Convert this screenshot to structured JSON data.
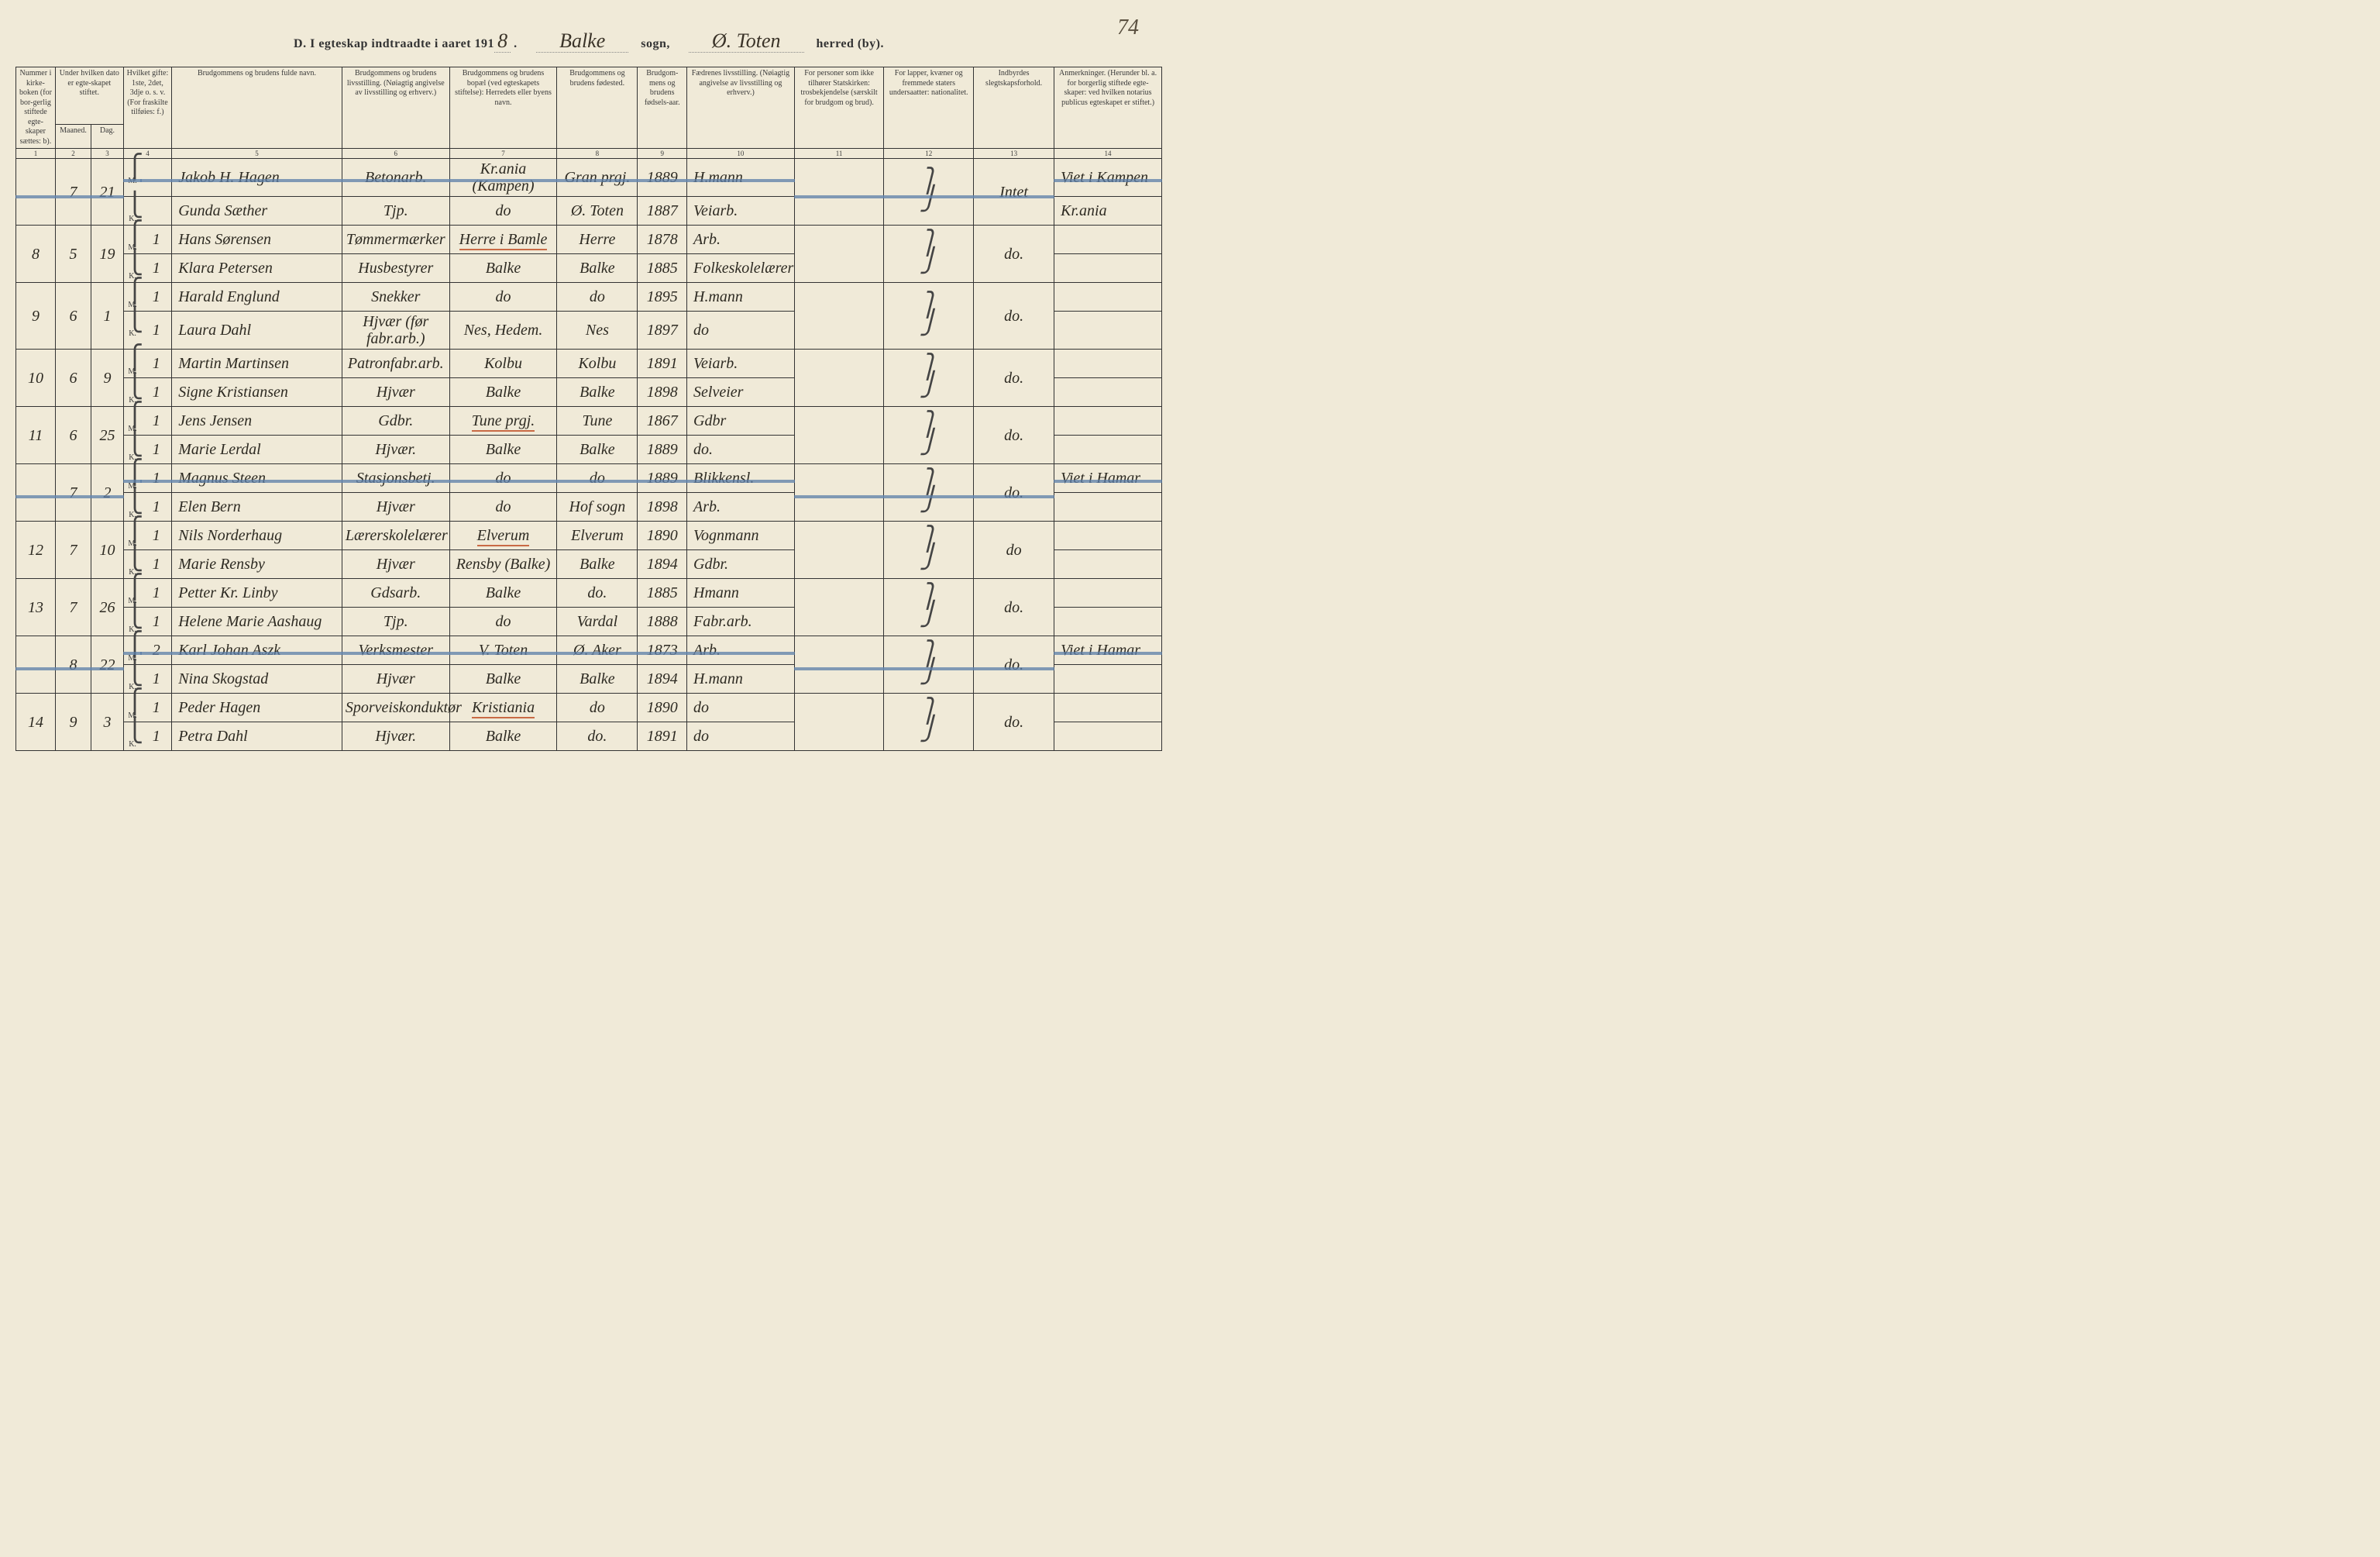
{
  "page_number": "74",
  "title": {
    "prefix": "D.  I egteskap indtraadte i aaret 191",
    "year_digit": "8",
    "sogn_label": "sogn,",
    "sogn_value": "Balke",
    "herred_label": "herred (by).",
    "herred_value": "Ø. Toten"
  },
  "headers": {
    "c1": "Nummer i kirke-boken (for bor-gerlig stiftede egte-skaper sættes: b).",
    "c2_3": "Under hvilken dato er egte-skapet stiftet.",
    "c2": "Maaned.",
    "c3": "Dag.",
    "c4": "Hvilket gifte: 1ste, 2det, 3dje o. s. v. (For fraskilte tilføies: f.)",
    "c5": "Brudgommens og brudens fulde navn.",
    "c6": "Brudgommens og brudens livsstilling. (Nøiagtig angivelse av livsstilling og erhverv.)",
    "c7": "Brudgommens og brudens bopæl (ved egteskapets stiftelse): Herredets eller byens navn.",
    "c8": "Brudgommens og brudens fødested.",
    "c9": "Brudgom-mens og brudens fødsels-aar.",
    "c10": "Fædrenes livsstilling. (Nøiagtig angivelse av livsstilling og erhverv.)",
    "c11": "For personer som ikke tilhører Statskirken: trosbekjendelse (særskilt for brudgom og brud).",
    "c12": "For lapper, kvæner og fremmede staters undersaatter: nationalitet.",
    "c13": "Indbyrdes slegtskapsforhold.",
    "c14": "Anmerkninger. (Herunder bl. a. for borgerlig stiftede egte-skaper: ved hvilken notarius publicus egteskapet er stiftet.)"
  },
  "colnums": [
    "1",
    "2",
    "3",
    "4",
    "5",
    "6",
    "7",
    "8",
    "9",
    "10",
    "11",
    "12",
    "13",
    "14"
  ],
  "rows": [
    {
      "num": "",
      "month": "7",
      "day": "21",
      "struck": true,
      "m": {
        "g": "",
        "name": "Jakob H. Hagen",
        "occ": "Betonarb.",
        "res": "Kr.ania (Kampen)",
        "birth": "Gran prgj.",
        "year": "1889",
        "father": "H.mann",
        "c14": "Viet i Kampen"
      },
      "k": {
        "g": "",
        "name": "Gunda Sæther",
        "occ": "Tjp.",
        "res": "do",
        "birth": "Ø. Toten",
        "year": "1887",
        "father": "Veiarb.",
        "c14": "Kr.ania"
      },
      "c13": "Intet"
    },
    {
      "num": "8",
      "month": "5",
      "day": "19",
      "m": {
        "g": "1",
        "name": "Hans Sørensen",
        "occ": "Tømmermærker",
        "res": "Herre i Bamle",
        "res_red": true,
        "birth": "Herre",
        "year": "1878",
        "father": "Arb."
      },
      "k": {
        "g": "1",
        "name": "Klara Petersen",
        "occ": "Husbestyrer",
        "res": "Balke",
        "birth": "Balke",
        "year": "1885",
        "father": "Folkeskolelærer"
      },
      "c13": "do."
    },
    {
      "num": "9",
      "month": "6",
      "day": "1",
      "m": {
        "g": "1",
        "name": "Harald Englund",
        "occ": "Snekker",
        "res": "do",
        "birth": "do",
        "year": "1895",
        "father": "H.mann"
      },
      "k": {
        "g": "1",
        "name": "Laura Dahl",
        "occ": "Hjvær (før fabr.arb.)",
        "res": "Nes, Hedem.",
        "birth": "Nes",
        "year": "1897",
        "father": "do"
      },
      "c13": "do."
    },
    {
      "num": "10",
      "month": "6",
      "day": "9",
      "m": {
        "g": "1",
        "name": "Martin Martinsen",
        "occ": "Patronfabr.arb.",
        "res": "Kolbu",
        "birth": "Kolbu",
        "year": "1891",
        "father": "Veiarb."
      },
      "k": {
        "g": "1",
        "name": "Signe Kristiansen",
        "occ": "Hjvær",
        "res": "Balke",
        "birth": "Balke",
        "year": "1898",
        "father": "Selveier"
      },
      "c13": "do."
    },
    {
      "num": "11",
      "month": "6",
      "day": "25",
      "m": {
        "g": "1",
        "name": "Jens Jensen",
        "occ": "Gdbr.",
        "res": "Tune prgj.",
        "res_red": true,
        "birth": "Tune",
        "year": "1867",
        "father": "Gdbr"
      },
      "k": {
        "g": "1",
        "name": "Marie Lerdal",
        "occ": "Hjvær.",
        "res": "Balke",
        "birth": "Balke",
        "year": "1889",
        "father": "do."
      },
      "c13": "do."
    },
    {
      "num": "",
      "month": "7",
      "day": "2",
      "struck": true,
      "m": {
        "g": "1",
        "name": "Magnus Steen",
        "occ": "Stasjonsbetj.",
        "res": "do",
        "birth": "do",
        "year": "1889",
        "father": "Blikkensl.",
        "c14": "Viet i Hamar"
      },
      "k": {
        "g": "1",
        "name": "Elen Bern",
        "occ": "Hjvær",
        "res": "do",
        "birth": "Hof sogn",
        "year": "1898",
        "father": "Arb."
      },
      "c13": "do."
    },
    {
      "num": "12",
      "month": "7",
      "day": "10",
      "m": {
        "g": "1",
        "name": "Nils Norderhaug",
        "occ": "Lærerskolelærer",
        "res": "Elverum",
        "res_red": true,
        "birth": "Elverum",
        "year": "1890",
        "father": "Vognmann"
      },
      "k": {
        "g": "1",
        "name": "Marie Rensby",
        "occ": "Hjvær",
        "res": "Rensby (Balke)",
        "birth": "Balke",
        "year": "1894",
        "father": "Gdbr."
      },
      "c13": "do"
    },
    {
      "num": "13",
      "month": "7",
      "day": "26",
      "m": {
        "g": "1",
        "name": "Petter Kr. Linby",
        "occ": "Gdsarb.",
        "res": "Balke",
        "birth": "do.",
        "year": "1885",
        "father": "Hmann"
      },
      "k": {
        "g": "1",
        "name": "Helene Marie Aashaug",
        "occ": "Tjp.",
        "res": "do",
        "birth": "Vardal",
        "year": "1888",
        "father": "Fabr.arb."
      },
      "c13": "do."
    },
    {
      "num": "",
      "month": "8",
      "day": "22",
      "struck": true,
      "m": {
        "g": "2",
        "name": "Karl Johan Aszk",
        "occ": "Verksmester",
        "res": "V. Toten",
        "birth": "Ø. Aker",
        "year": "1873",
        "father": "Arb.",
        "c14": "Viet i Hamar"
      },
      "k": {
        "g": "1",
        "name": "Nina Skogstad",
        "occ": "Hjvær",
        "res": "Balke",
        "birth": "Balke",
        "year": "1894",
        "father": "H.mann"
      },
      "c13": "do."
    },
    {
      "num": "14",
      "month": "9",
      "day": "3",
      "m": {
        "g": "1",
        "name": "Peder Hagen",
        "occ": "Sporveiskonduktør",
        "res": "Kristiania",
        "res_red": true,
        "birth": "do",
        "year": "1890",
        "father": "do"
      },
      "k": {
        "g": "1",
        "name": "Petra Dahl",
        "occ": "Hjvær.",
        "res": "Balke",
        "birth": "do.",
        "year": "1891",
        "father": "do"
      },
      "c13": "do."
    }
  ]
}
